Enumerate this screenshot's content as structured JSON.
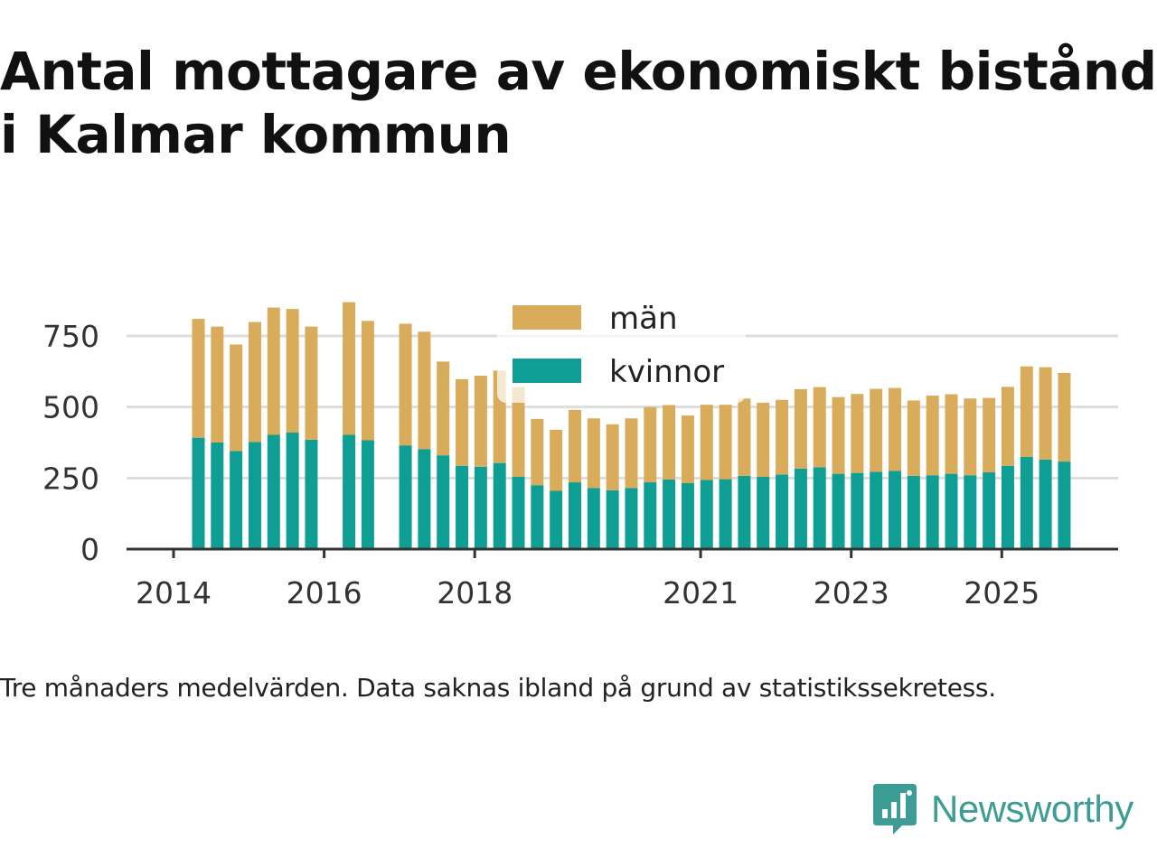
{
  "title": "Antal mottagare av ekonomiskt bistånd i Kalmar kommun",
  "caption": "Tre månaders medelvärden. Data saknas ibland på grund av statistikssekretess.",
  "brand": {
    "name": "Newsworthy",
    "color": "#3d9c93",
    "icon": "newsworthy-logo-icon"
  },
  "colors": {
    "man": "#d9ac5b",
    "kvinnor": "#0f9e94",
    "grid": "#dddddd",
    "axis": "#333333"
  },
  "chart_data": {
    "type": "bar",
    "stacked": true,
    "title": "Antal mottagare av ekonomiskt bistånd i Kalmar kommun",
    "xlabel": "",
    "ylabel": "",
    "ylim": [
      0,
      900
    ],
    "yticks": [
      0,
      250,
      500,
      750
    ],
    "xlim": [
      2013.5,
      2026.0
    ],
    "xticks": [
      {
        "label": "2014",
        "value": 2014.0
      },
      {
        "label": "2016",
        "value": 2016.0
      },
      {
        "label": "2018",
        "value": 2018.0
      },
      {
        "label": "2021",
        "value": 2021.0
      },
      {
        "label": "2023",
        "value": 2023.0
      },
      {
        "label": "2025",
        "value": 2025.0
      }
    ],
    "legend": [
      "män",
      "kvinnor"
    ],
    "legend_position": "top-center",
    "x": [
      2014.33,
      2014.58,
      2014.83,
      2015.08,
      2015.33,
      2015.58,
      2015.83,
      2016.33,
      2016.58,
      2017.08,
      2017.33,
      2017.58,
      2017.83,
      2018.08,
      2018.33,
      2018.58,
      2018.83,
      2019.08,
      2019.33,
      2019.58,
      2019.83,
      2020.08,
      2020.33,
      2020.58,
      2020.83,
      2021.08,
      2021.33,
      2021.58,
      2021.83,
      2022.08,
      2022.33,
      2022.58,
      2022.83,
      2023.08,
      2023.33,
      2023.58,
      2023.83,
      2024.08,
      2024.33,
      2024.58,
      2024.83,
      2025.08,
      2025.33,
      2025.58,
      2025.83
    ],
    "series": [
      {
        "name": "kvinnor",
        "values": [
          392,
          375,
          345,
          377,
          402,
          410,
          385,
          402,
          383,
          365,
          352,
          330,
          293,
          290,
          303,
          255,
          225,
          205,
          235,
          215,
          207,
          215,
          235,
          245,
          232,
          243,
          246,
          258,
          255,
          262,
          283,
          288,
          265,
          268,
          272,
          275,
          258,
          260,
          265,
          260,
          270,
          293,
          325,
          315,
          308
        ]
      },
      {
        "name": "män",
        "values": [
          418,
          408,
          375,
          422,
          448,
          435,
          398,
          467,
          420,
          428,
          413,
          330,
          305,
          320,
          325,
          315,
          233,
          215,
          255,
          245,
          232,
          245,
          265,
          262,
          238,
          265,
          262,
          272,
          260,
          263,
          280,
          282,
          270,
          278,
          292,
          292,
          265,
          280,
          280,
          270,
          262,
          278,
          318,
          325,
          312
        ]
      }
    ]
  }
}
